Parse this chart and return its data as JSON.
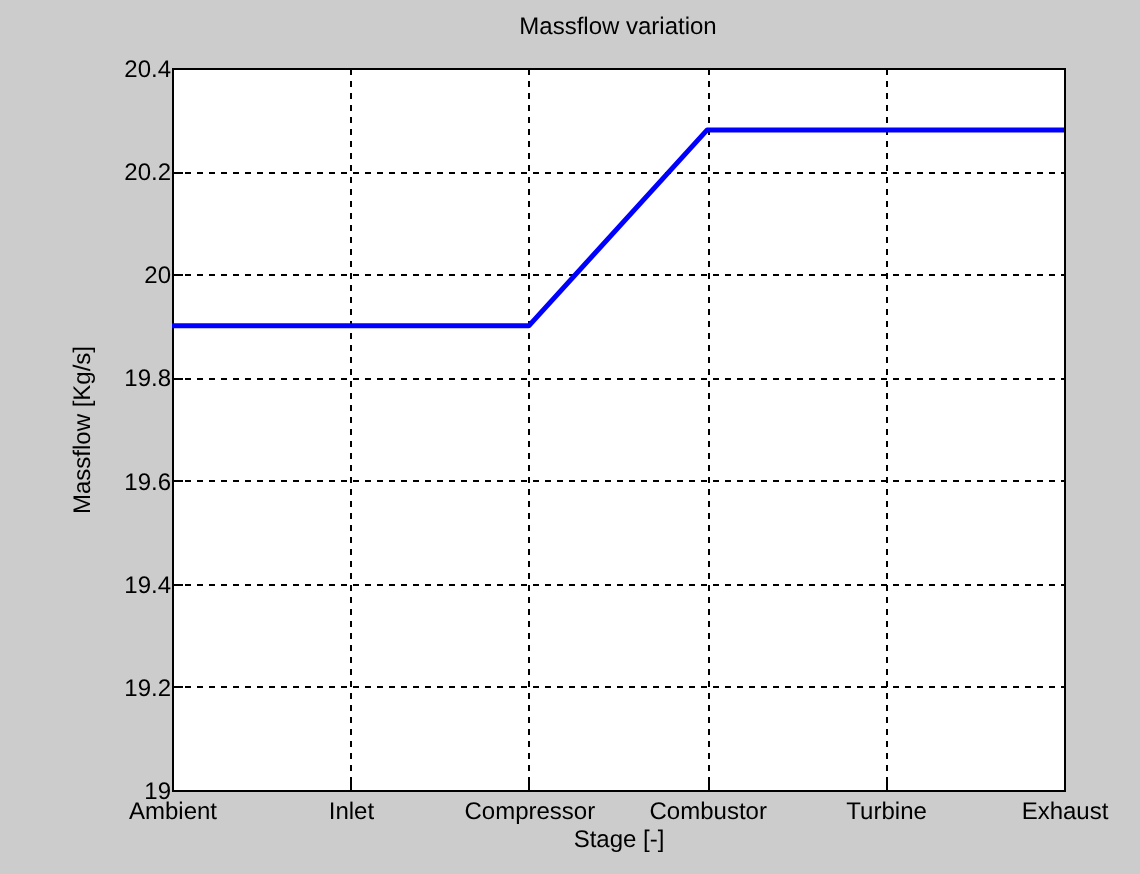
{
  "chart_data": {
    "type": "line",
    "title": "Massflow variation",
    "xlabel": "Stage [-]",
    "ylabel": "Massflow [Kg/s]",
    "categories": [
      "Ambient",
      "Inlet",
      "Compressor",
      "Combustor",
      "Turbine",
      "Exhaust"
    ],
    "series": [
      {
        "color": "#0000ff",
        "values": [
          19.9,
          19.9,
          19.9,
          20.28,
          20.28,
          20.28
        ]
      }
    ],
    "ylim": [
      19,
      20.4
    ],
    "yticks": [
      19,
      19.2,
      19.4,
      19.6,
      19.8,
      20,
      20.2,
      20.4
    ],
    "grid": true,
    "line_style": "solid",
    "marker": "none"
  }
}
